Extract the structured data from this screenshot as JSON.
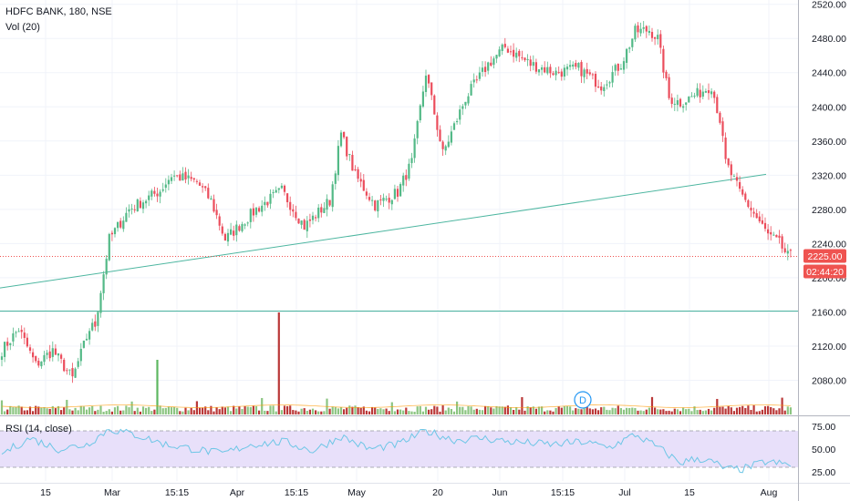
{
  "header": {
    "title": "HDFC BANK, 180, NSE",
    "volume_label": "Vol (20)",
    "rsi_label": "RSI (14, close)"
  },
  "price_badges": {
    "last_price": "2225.00",
    "countdown": "02:44:20"
  },
  "event_marker": "D",
  "colors": {
    "up": "#53b987",
    "down": "#eb4d5c",
    "vol_up": "#7fbf74",
    "vol_down": "#b22222",
    "trendline": "#4db6a0",
    "rsi_line": "#6ec6e6",
    "rsi_band": "#e8e0fa",
    "badge": "#ef5350",
    "marker": "#2196f3"
  },
  "chart_data": [
    {
      "type": "candlestick",
      "ylim": [
        2040,
        2525
      ],
      "y_ticks": [
        "2520.00",
        "2480.00",
        "2440.00",
        "2400.00",
        "2360.00",
        "2320.00",
        "2280.00",
        "2240.00",
        "2200.00",
        "2160.00",
        "2120.00",
        "2080.00"
      ],
      "x_ticks": [
        "15",
        "Mar",
        "15:15",
        "Apr",
        "15:15",
        "May",
        "20",
        "Jun",
        "15:15",
        "Jul",
        "15",
        "Aug"
      ],
      "anchors": [
        [
          0,
          2115
        ],
        [
          6,
          2140
        ],
        [
          12,
          2098
        ],
        [
          18,
          2115
        ],
        [
          25,
          2082
        ],
        [
          31,
          2140
        ],
        [
          33,
          2145
        ],
        [
          38,
          2245
        ],
        [
          45,
          2280
        ],
        [
          56,
          2302
        ],
        [
          60,
          2320
        ],
        [
          69,
          2312
        ],
        [
          74,
          2290
        ],
        [
          79,
          2245
        ],
        [
          90,
          2280
        ],
        [
          99,
          2302
        ],
        [
          107,
          2260
        ],
        [
          116,
          2290
        ],
        [
          120,
          2368
        ],
        [
          125,
          2320
        ],
        [
          132,
          2285
        ],
        [
          140,
          2300
        ],
        [
          145,
          2335
        ],
        [
          150,
          2440
        ],
        [
          156,
          2345
        ],
        [
          164,
          2410
        ],
        [
          172,
          2450
        ],
        [
          178,
          2470
        ],
        [
          187,
          2450
        ],
        [
          196,
          2440
        ],
        [
          204,
          2445
        ],
        [
          212,
          2425
        ],
        [
          219,
          2450
        ],
        [
          224,
          2488
        ],
        [
          229,
          2490
        ],
        [
          232,
          2480
        ],
        [
          236,
          2410
        ],
        [
          240,
          2405
        ],
        [
          246,
          2415
        ],
        [
          251,
          2425
        ],
        [
          254,
          2385
        ],
        [
          256,
          2335
        ],
        [
          261,
          2300
        ],
        [
          266,
          2275
        ],
        [
          271,
          2250
        ],
        [
          275,
          2240
        ],
        [
          278,
          2225
        ]
      ],
      "trendlines": [
        {
          "from": [
            "start",
            2188
          ],
          "to": [
            "Jul 15",
            2321
          ]
        },
        {
          "horizontal": 2161
        }
      ],
      "last_price": 2225.0
    },
    {
      "type": "bar",
      "title": "Vol (20)",
      "spikes": [
        "Mar",
        "Apr 15:15"
      ]
    },
    {
      "type": "line",
      "title": "RSI (14, close)",
      "y_ticks": [
        "75.00",
        "50.00",
        "25.00"
      ],
      "ylim": [
        15,
        85
      ],
      "band": [
        30,
        70
      ],
      "anchors": [
        [
          0,
          45
        ],
        [
          10,
          62
        ],
        [
          20,
          50
        ],
        [
          30,
          55
        ],
        [
          38,
          72
        ],
        [
          48,
          65
        ],
        [
          58,
          55
        ],
        [
          68,
          50
        ],
        [
          78,
          45
        ],
        [
          88,
          55
        ],
        [
          100,
          58
        ],
        [
          110,
          48
        ],
        [
          120,
          64
        ],
        [
          130,
          50
        ],
        [
          140,
          55
        ],
        [
          150,
          70
        ],
        [
          160,
          60
        ],
        [
          170,
          62
        ],
        [
          180,
          58
        ],
        [
          195,
          55
        ],
        [
          205,
          58
        ],
        [
          215,
          52
        ],
        [
          224,
          66
        ],
        [
          232,
          52
        ],
        [
          240,
          35
        ],
        [
          246,
          40
        ],
        [
          252,
          35
        ],
        [
          256,
          28
        ],
        [
          262,
          28
        ],
        [
          270,
          36
        ],
        [
          278,
          33
        ]
      ]
    }
  ]
}
